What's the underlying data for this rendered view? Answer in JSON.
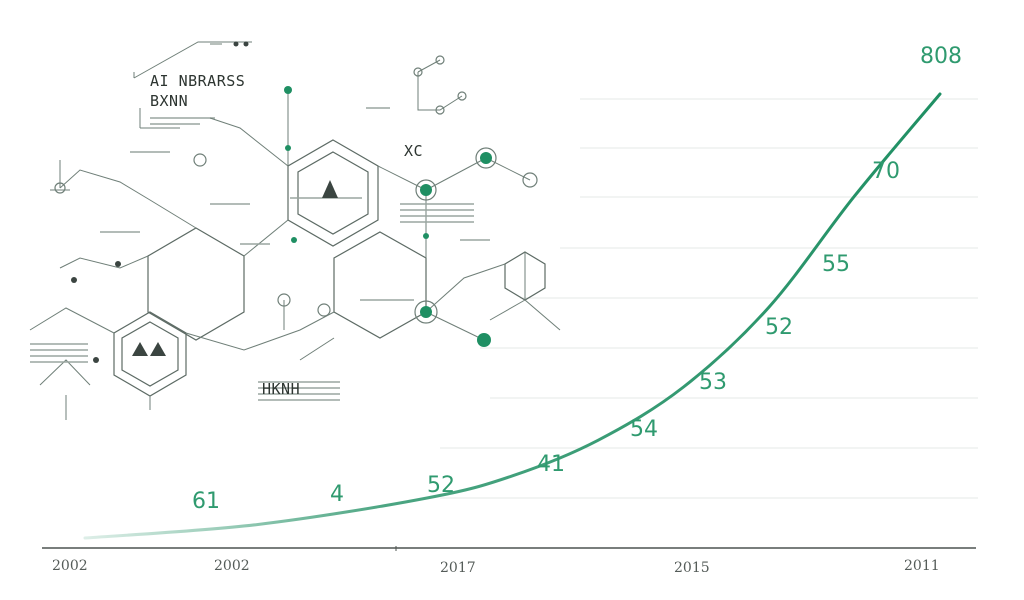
{
  "chart_data": {
    "type": "line",
    "title": "",
    "xlabel": "",
    "ylabel": "",
    "x_tick_labels": [
      "2002",
      "2002",
      "2017",
      "2015",
      "2011"
    ],
    "data_labels": [
      "61",
      "4",
      "52",
      "41",
      "54",
      "53",
      "52",
      "55",
      "70",
      "808"
    ],
    "series": [
      {
        "color": "#1f8f63",
        "shape": "exponential-growth",
        "points": [
          {
            "x": 0.0,
            "y": 0.0
          },
          {
            "x": 0.2,
            "y": 0.03
          },
          {
            "x": 0.4,
            "y": 0.09
          },
          {
            "x": 0.5,
            "y": 0.14
          },
          {
            "x": 0.6,
            "y": 0.22
          },
          {
            "x": 0.7,
            "y": 0.34
          },
          {
            "x": 0.8,
            "y": 0.52
          },
          {
            "x": 0.9,
            "y": 0.77
          },
          {
            "x": 1.0,
            "y": 1.0
          }
        ]
      }
    ],
    "grid": true,
    "legend": "none"
  },
  "diagram": {
    "title_line1": "AI NBRARSS",
    "title_line2": "BXNN",
    "caption": "XC",
    "box_label": "HKNH"
  },
  "colors": {
    "accent": "#1f8f63",
    "label": "#2f9a6f",
    "grid": "#e6e9e7"
  }
}
